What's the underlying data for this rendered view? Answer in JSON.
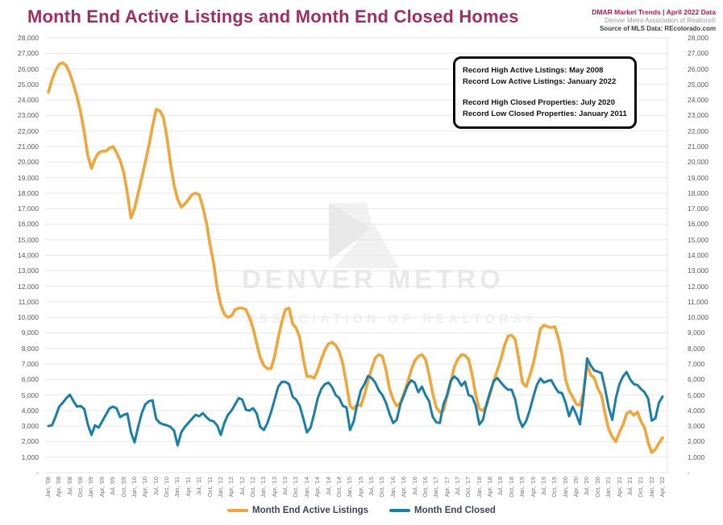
{
  "header": {
    "title": "Month End Active Listings and Month End Closed Homes",
    "title_color": "#9c2f63",
    "right_line1": "DMAR Market Trends | April 2022 Data",
    "right_line1_color": "#ae1857",
    "right_line2": "Denver Metro Association of Realtors®",
    "right_line3": "Source of MLS Data: REcolorado.com"
  },
  "watermark": {
    "line1": "DENVER METRO",
    "line2": "ASSOCIATION OF REALTORS®"
  },
  "annotation": {
    "lines": [
      "Record High Active Listings: May 2008",
      "Record Low Active Listings: January 2022",
      "Record High Closed Properties: July 2020",
      "Record Low Closed Properties: January 2011"
    ]
  },
  "chart_data": {
    "type": "line",
    "title": "Month End Active Listings and Month End Closed Homes",
    "xlabel": "",
    "ylabel": "",
    "ylim": [
      0,
      28000
    ],
    "ytick_step": 1000,
    "grid": true,
    "legend_position": "bottom",
    "ytick_labels": [
      "-",
      "1,000",
      "2,000",
      "3,000",
      "4,000",
      "5,000",
      "6,000",
      "7,000",
      "8,000",
      "9,000",
      "10,000",
      "11,000",
      "12,000",
      "13,000",
      "14,000",
      "15,000",
      "16,000",
      "17,000",
      "18,000",
      "19,000",
      "20,000",
      "21,000",
      "22,000",
      "23,000",
      "24,000",
      "25,000",
      "26,000",
      "27,000",
      "28,000"
    ],
    "xtick_labels": [
      "Jan, '08",
      "Apr, '08",
      "Jul, '08",
      "Oct, '08",
      "Jan, '09",
      "Apr, '09",
      "Jul, '09",
      "Oct, '09",
      "Jan, '10",
      "Apr, '10",
      "Jul, '10",
      "Oct, '10",
      "Jan, '11",
      "Apr, '11",
      "Jul, '11",
      "Oct, '11",
      "Jan, '12",
      "Apr, '12",
      "Jul, '12",
      "Oct, '12",
      "Jan, '13",
      "Apr, '13",
      "Jul, '13",
      "Oct, '13",
      "Jan, '14",
      "Apr, '14",
      "Jul, '14",
      "Oct, '14",
      "Jan, '15",
      "Apr, '15",
      "Jul, '15",
      "Oct, '15",
      "Jan, '16",
      "Apr, '16",
      "Jul, '16",
      "Oct, '16",
      "Jan, '17",
      "Apr, '17",
      "Jul, '17",
      "Oct, '17",
      "Jan, '18",
      "Apr, '18",
      "Jul, '18",
      "Oct, '18",
      "Jan, '19",
      "Apr, '19",
      "Jul, '19",
      "Oct, '19",
      "Jan, '20",
      "Apr, '20",
      "Jul, '20",
      "Oct, '20",
      "Jan, '21",
      "Apr, '21",
      "Jul, '21",
      "Oct, '21",
      "Jan, '22",
      "Apr, '22"
    ],
    "xtick_month_interval": 3,
    "x_start": "Jan 2008",
    "x_end": "Apr 2022",
    "series": [
      {
        "name": "Month End Active Listings",
        "color": "#efa63c",
        "values": [
          24500,
          25300,
          25900,
          26300,
          26400,
          26200,
          25700,
          25000,
          24200,
          23200,
          21900,
          20400,
          19600,
          20200,
          20600,
          20700,
          20700,
          20900,
          21000,
          20600,
          20100,
          19300,
          18000,
          16400,
          17000,
          18000,
          19000,
          20000,
          21100,
          22300,
          23400,
          23300,
          22900,
          21600,
          19900,
          18500,
          17600,
          17100,
          17300,
          17600,
          17900,
          18000,
          17900,
          17100,
          16100,
          14700,
          13500,
          11900,
          10800,
          10200,
          10000,
          10100,
          10500,
          10600,
          10600,
          10500,
          10000,
          9300,
          8300,
          7400,
          6900,
          6700,
          6700,
          7500,
          8700,
          9700,
          10500,
          10600,
          9600,
          9300,
          8700,
          7300,
          6200,
          6200,
          6100,
          6600,
          7300,
          7900,
          8300,
          8400,
          8200,
          7800,
          7000,
          5700,
          4300,
          4100,
          4400,
          4300,
          5000,
          5900,
          6700,
          7400,
          7600,
          7500,
          6600,
          5400,
          4700,
          4300,
          4500,
          5100,
          5800,
          6600,
          7200,
          7500,
          7600,
          7300,
          6300,
          5100,
          4200,
          3900,
          4000,
          4900,
          5800,
          6800,
          7300,
          7600,
          7550,
          7300,
          6300,
          5000,
          4100,
          4000,
          4300,
          5100,
          5900,
          6600,
          7300,
          8200,
          8800,
          8850,
          8560,
          7250,
          5800,
          5540,
          6220,
          7000,
          8130,
          9270,
          9500,
          9400,
          9350,
          9400,
          8650,
          7610,
          6000,
          5280,
          4870,
          4400,
          4350,
          5200,
          7000,
          6300,
          6100,
          5400,
          5000,
          3800,
          2800,
          2300,
          2000,
          2600,
          3100,
          3800,
          3950,
          3700,
          3900,
          3300,
          2900,
          1920,
          1300,
          1500,
          1900,
          2250
        ]
      },
      {
        "name": "Month End Closed",
        "color": "#1b7ea6",
        "values": [
          3000,
          3050,
          3600,
          4250,
          4500,
          4800,
          5020,
          4600,
          4250,
          4300,
          4090,
          3100,
          2430,
          3050,
          2900,
          3310,
          3730,
          4140,
          4250,
          4140,
          3570,
          3730,
          3800,
          2600,
          1950,
          2950,
          3830,
          4400,
          4600,
          4660,
          3470,
          3210,
          3110,
          3050,
          2950,
          2700,
          1760,
          2600,
          2950,
          3210,
          3470,
          3730,
          3630,
          3830,
          3570,
          3370,
          3310,
          3050,
          2430,
          3210,
          3730,
          4000,
          4400,
          4800,
          4700,
          4050,
          4000,
          4150,
          3800,
          2950,
          2750,
          3200,
          3900,
          4700,
          5540,
          5850,
          5850,
          5700,
          4900,
          4700,
          4300,
          3470,
          2590,
          2900,
          3800,
          4800,
          5400,
          5700,
          5800,
          5500,
          5000,
          4800,
          4300,
          4200,
          2750,
          3300,
          4400,
          5300,
          5700,
          6220,
          6100,
          5800,
          5300,
          5000,
          4500,
          3780,
          3200,
          3400,
          4400,
          5000,
          5600,
          5950,
          5800,
          5180,
          5540,
          5000,
          4600,
          3600,
          3250,
          3200,
          4400,
          5000,
          5900,
          6200,
          6000,
          5600,
          5860,
          5000,
          4900,
          4300,
          3100,
          3400,
          4400,
          5200,
          5900,
          6100,
          5800,
          5540,
          5340,
          5340,
          4700,
          3470,
          2950,
          3310,
          4000,
          4870,
          5640,
          6060,
          5800,
          5900,
          5960,
          5540,
          5180,
          5130,
          4510,
          3630,
          4250,
          3730,
          3110,
          5000,
          7360,
          6900,
          6580,
          6500,
          6420,
          5400,
          4200,
          3400,
          4800,
          5700,
          6200,
          6480,
          6000,
          5700,
          5640,
          5390,
          5180,
          4760,
          3350,
          3500,
          4500,
          4900
        ]
      }
    ],
    "annotations": [
      "Record High Active Listings: May 2008",
      "Record Low Active Listings: January 2022",
      "Record High Closed Properties: July 2020",
      "Record Low Closed Properties: January 2011"
    ]
  },
  "legend": {
    "items": [
      {
        "label": "Month End Active Listings",
        "color": "#efa63c"
      },
      {
        "label": "Month End Closed",
        "color": "#1b7ea6"
      }
    ]
  }
}
